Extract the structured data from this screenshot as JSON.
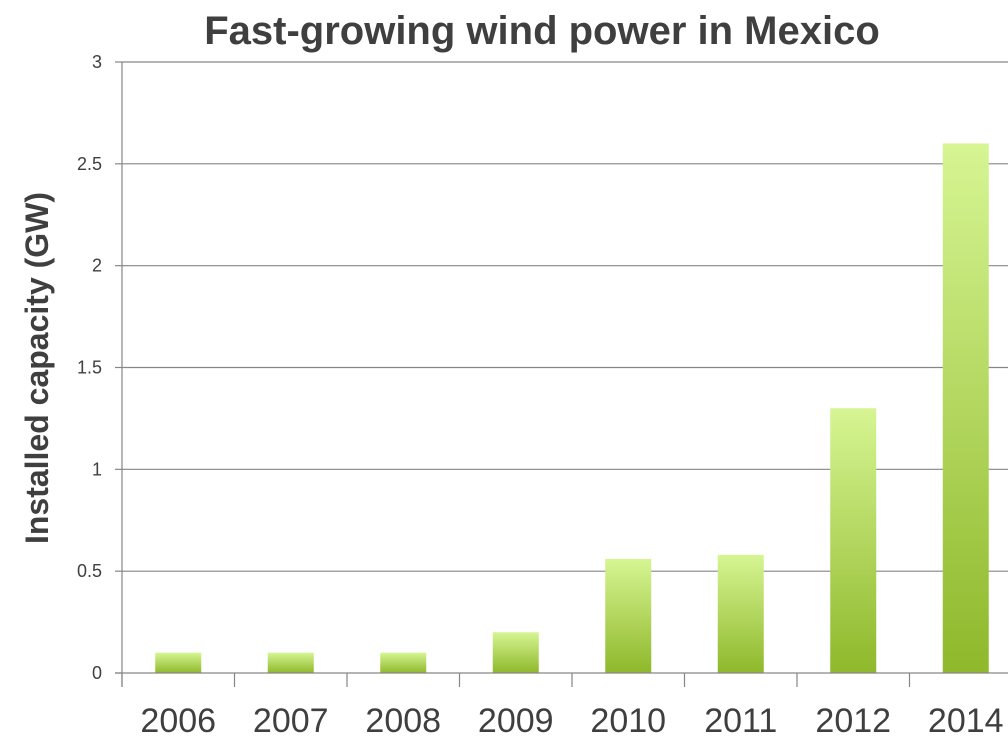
{
  "chart_data": {
    "type": "bar",
    "title": "Fast-growing wind power in Mexico",
    "xlabel": "",
    "ylabel": "Installed capacity (GW)",
    "categories": [
      "2006",
      "2007",
      "2008",
      "2009",
      "2010",
      "2011",
      "2012",
      "2014"
    ],
    "values": [
      0.1,
      0.1,
      0.1,
      0.2,
      0.56,
      0.58,
      1.3,
      2.6
    ],
    "ylim": [
      0,
      3
    ],
    "yticks": [
      0,
      0.5,
      1,
      1.5,
      2,
      2.5,
      3
    ],
    "ytick_labels": [
      "0",
      "0.5",
      "1",
      "1.5",
      "2",
      "2.5",
      "3"
    ],
    "grid": true,
    "colors": {
      "bar_top": "#d6f593",
      "bar_bottom": "#8fb82b",
      "gridline": "#868686",
      "axis": "#868686",
      "text": "#3f3f3f"
    }
  }
}
